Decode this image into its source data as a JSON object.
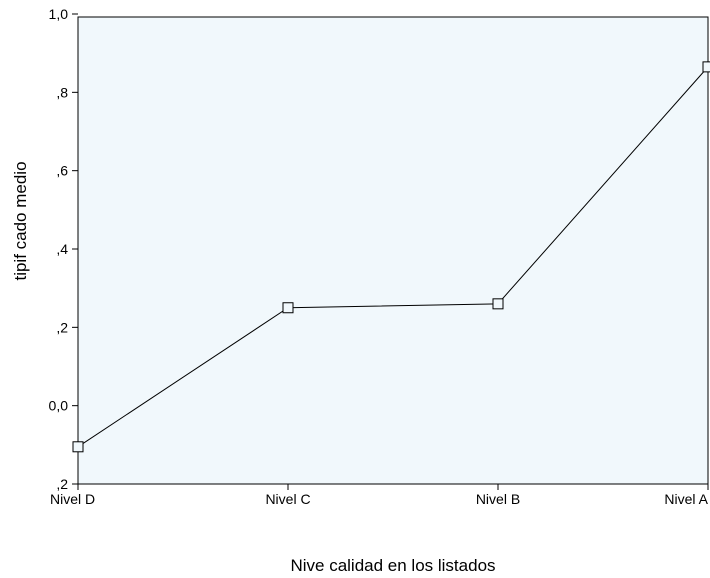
{
  "chart_data": {
    "type": "line",
    "title": "",
    "xlabel": "Nive calidad en los listados",
    "ylabel": "tipif cado medio",
    "categories": [
      "Nivel D",
      "Nivel C",
      "Nivel B",
      "Nivel A"
    ],
    "series": [
      {
        "values": [
          -0.105,
          0.25,
          0.26,
          0.865
        ]
      }
    ],
    "ylim": [
      -0.2,
      1.0
    ],
    "yticks": [
      -0.2,
      0.0,
      0.2,
      0.4,
      0.6,
      0.8,
      1.0
    ],
    "ytick_labels": [
      ",2",
      "0,0",
      ",2",
      ",4",
      ",6",
      ",8",
      "1,0"
    ],
    "marker": "open-square",
    "grid": false,
    "legend": "none",
    "colors": {
      "plot_background": "#f1f8fc",
      "line": "#000000",
      "axis": "#000000"
    }
  }
}
